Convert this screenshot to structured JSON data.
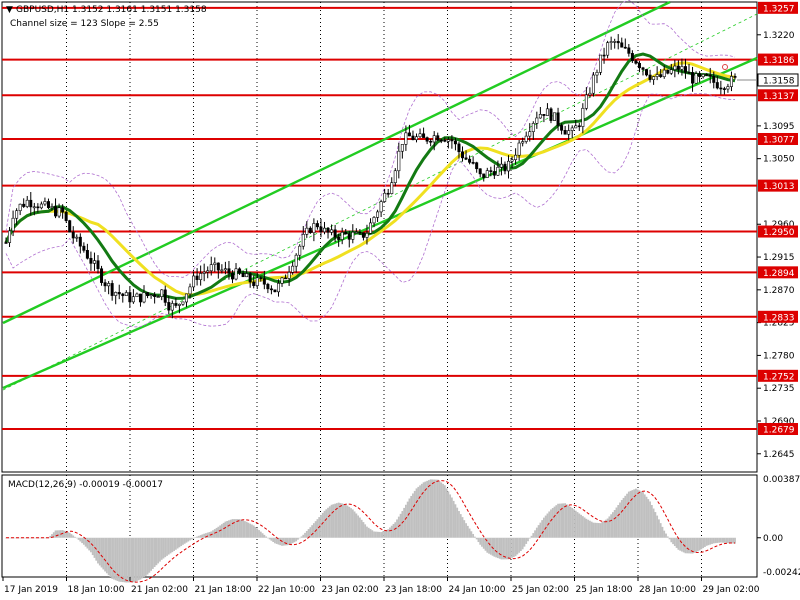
{
  "header": {
    "symbol_line": "GBPUSD,H1  1.3152 1.3161 1.3151 1.3158",
    "channel_line": "Channel size = 123 Slope = 2.55"
  },
  "macd": {
    "label": "MACD(12,26,9) -0.00019 -0.00017",
    "ticks": [
      "0.00387",
      "0.00",
      "-0.00242"
    ]
  },
  "colors": {
    "level_line": "#dd0000",
    "level_box": "#dd0000",
    "price_box": "#ffffff",
    "channel": "#22cc22",
    "channel_mid": "#22cc22",
    "ma_fast": "#137a13",
    "ma_slow": "#f0e020",
    "bollinger": "#b070d0",
    "candles": "#000000",
    "macd_hist": "#c0c0c0",
    "macd_signal": "#dd0000",
    "grid": "#000000"
  },
  "chart_data": {
    "type": "line",
    "title": "GBPUSD,H1",
    "ylim": [
      1.262,
      1.3265
    ],
    "y_ticks": [
      "1.3257",
      "1.3220",
      "1.3186",
      "1.3158",
      "1.3137",
      "1.3095",
      "1.3077",
      "1.3050",
      "1.3013",
      "1.2960",
      "1.2950",
      "1.2915",
      "1.2894",
      "1.2870",
      "1.2833",
      "1.2825",
      "1.2780",
      "1.2752",
      "1.2735",
      "1.2690",
      "1.2679",
      "1.2645"
    ],
    "levels": [
      "1.3257",
      "1.3186",
      "1.3137",
      "1.3077",
      "1.3013",
      "1.2950",
      "1.2894",
      "1.2833",
      "1.2752",
      "1.2679"
    ],
    "current_price": "1.3158",
    "current_price_value": 1.3158,
    "plain_ticks": [
      "1.3220",
      "1.3095",
      "1.3050",
      "1.2960",
      "1.2915",
      "1.2870",
      "1.2825",
      "1.2780",
      "1.2735",
      "1.2690",
      "1.2645"
    ],
    "x_labels": [
      "17 Jan 2019",
      "18 Jan 10:00",
      "21 Jan 02:00",
      "21 Jan 18:00",
      "22 Jan 10:00",
      "23 Jan 02:00",
      "23 Jan 18:00",
      "24 Jan 10:00",
      "25 Jan 02:00",
      "25 Jan 18:00",
      "28 Jan 10:00",
      "29 Jan 02:00"
    ],
    "price_path": [
      1.2935,
      1.2975,
      1.2985,
      1.2992,
      1.299,
      1.2985,
      1.2982,
      1.2978,
      1.2975,
      1.295,
      1.2935,
      1.2925,
      1.291,
      1.2895,
      1.288,
      1.287,
      1.2865,
      1.286,
      1.2858,
      1.286,
      1.2862,
      1.2865,
      1.2868,
      1.285,
      1.2845,
      1.286,
      1.2875,
      1.289,
      1.2895,
      1.29,
      1.2898,
      1.2895,
      1.2892,
      1.289,
      1.2885,
      1.288,
      1.288,
      1.2878,
      1.287,
      1.288,
      1.29,
      1.292,
      1.294,
      1.2955,
      1.296,
      1.295,
      1.2945,
      1.2945,
      1.2945,
      1.2945,
      1.2942,
      1.295,
      1.297,
      1.299,
      1.301,
      1.304,
      1.3075,
      1.308,
      1.3078,
      1.3076,
      1.308,
      1.3082,
      1.308,
      1.3075,
      1.306,
      1.305,
      1.304,
      1.3025,
      1.303,
      1.3035,
      1.3035,
      1.304,
      1.306,
      1.308,
      1.3095,
      1.311,
      1.3115,
      1.311,
      1.31,
      1.309,
      1.3085,
      1.31,
      1.313,
      1.316,
      1.3185,
      1.3205,
      1.321,
      1.32,
      1.3195,
      1.3185,
      1.3175,
      1.3165,
      1.316,
      1.3165,
      1.317,
      1.3175,
      1.317,
      1.316,
      1.3158,
      1.316,
      1.3155,
      1.3152,
      1.3155,
      1.3158
    ]
  }
}
